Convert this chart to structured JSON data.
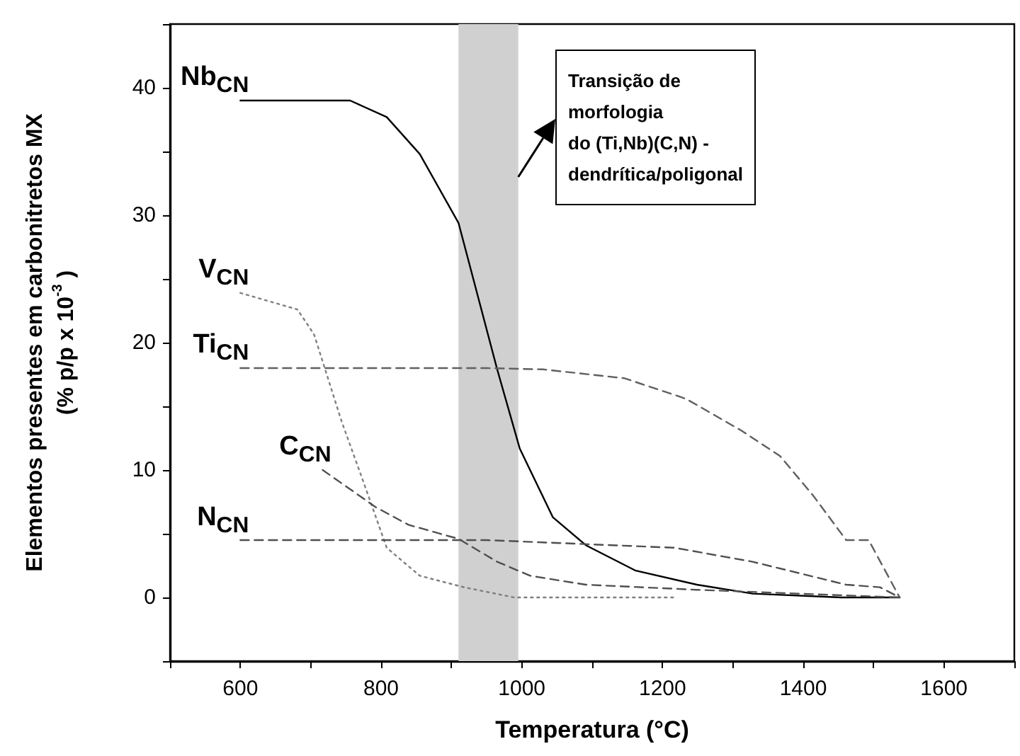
{
  "chart_data": {
    "type": "line",
    "xlabel": "Temperatura (°C)",
    "ylabel": "Elementos presentes em carbonitretos MX\n(% p/p x 10$^{-3}$ )",
    "xlim": [
      500,
      1700
    ],
    "ylim": [
      -5,
      45
    ],
    "xticks": [
      {
        "value": 500,
        "label": null
      },
      600,
      {
        "value": 700,
        "label": null
      },
      800,
      {
        "value": 900,
        "label": null
      },
      1000,
      {
        "value": 1100,
        "label": null
      },
      1200,
      {
        "value": 1300,
        "label": null
      },
      1400,
      {
        "value": 1500,
        "label": null
      },
      1600,
      {
        "value": 1700,
        "label": null
      }
    ],
    "yticks": [
      {
        "value": -5,
        "label": null
      },
      0,
      {
        "value": 5,
        "label": null
      },
      10,
      {
        "value": 15,
        "label": null
      },
      20,
      {
        "value": 25,
        "label": null
      },
      30,
      {
        "value": 35,
        "label": null
      },
      40,
      {
        "value": 45,
        "label": null
      }
    ],
    "grid": false,
    "legend": false,
    "marker": "none",
    "series": [
      {
        "name": "Nb$_{CN}$",
        "color": "#000000",
        "line_style": "solid",
        "x": [
          600,
          756,
          808,
          855,
          910,
          965,
          997,
          1044,
          1091,
          1162,
          1249,
          1328,
          1454,
          1537
        ],
        "values": [
          39,
          39,
          37.7,
          34.8,
          29.4,
          17.9,
          11.7,
          6.3,
          4.1,
          2.1,
          1.0,
          0.3,
          0,
          0
        ]
      },
      {
        "name": "V$_{CN}$",
        "color": "#808080",
        "line_style": "dotted",
        "x": [
          600,
          681,
          697,
          705,
          744,
          776,
          808,
          855,
          918,
          989,
          1220
        ],
        "values": [
          23.9,
          22.6,
          21.3,
          20.6,
          13.8,
          8.9,
          3.9,
          1.7,
          0.8,
          0,
          0
        ]
      },
      {
        "name": "Ti$_{CN}$",
        "color": "#606060",
        "line_style": "dashed",
        "x": [
          600,
          950,
          1030,
          1146,
          1233,
          1312,
          1367,
          1414,
          1461,
          1493,
          1537
        ],
        "values": [
          18,
          18,
          17.9,
          17.2,
          15.6,
          13.1,
          11.1,
          8.0,
          4.5,
          4.5,
          0
        ]
      },
      {
        "name": "C$_{CN}$",
        "color": "#505050",
        "line_style": "dashed",
        "x": [
          717,
          792,
          839,
          910,
          965,
          1012,
          1091,
          1249,
          1537
        ],
        "values": [
          10,
          7.1,
          5.7,
          4.6,
          2.8,
          1.7,
          1.0,
          0.6,
          0
        ]
      },
      {
        "name": "N$_{CN}$",
        "color": "#505050",
        "line_style": "dashed",
        "x": [
          600,
          950,
          1217,
          1328,
          1461,
          1509,
          1537
        ],
        "values": [
          4.5,
          4.5,
          3.9,
          2.8,
          1.0,
          0.8,
          0
        ]
      }
    ],
    "bands": [
      {
        "axis": "x",
        "from": 910,
        "to": 995,
        "color": "#d0d0d0"
      }
    ],
    "annotations": [
      "Transição de\nmorfologia\ndo (Ti,Nb)(C,N) -\ndendrítica/poligonal"
    ]
  }
}
